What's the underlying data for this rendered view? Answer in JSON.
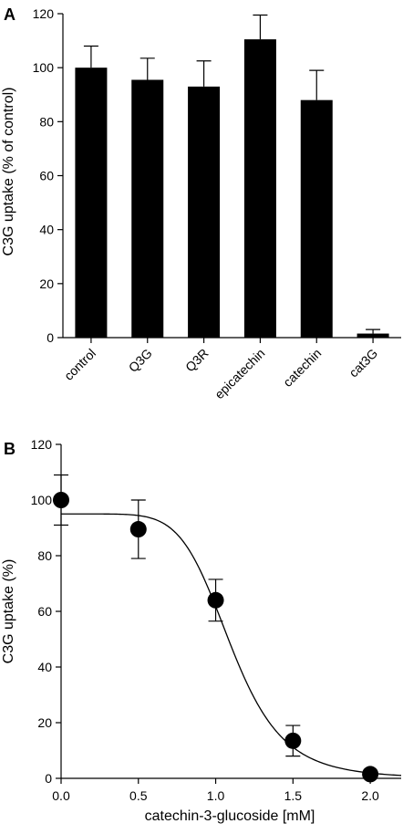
{
  "chart_data": [
    {
      "panel": "A",
      "type": "bar",
      "ylabel": "C3G uptake (% of control)",
      "ylim": [
        0,
        120
      ],
      "yticks": [
        0,
        20,
        40,
        60,
        80,
        100,
        120
      ],
      "categories": [
        "control",
        "Q3G",
        "Q3R",
        "epicatechin",
        "catechin",
        "cat3G"
      ],
      "values": [
        100,
        95.5,
        93,
        110.5,
        88,
        1.5
      ],
      "errors": [
        8,
        8,
        9.5,
        9,
        11,
        1.5
      ],
      "bar_color": "#000000"
    },
    {
      "panel": "B",
      "type": "scatter",
      "xlabel": "catechin-3-glucoside [mM]",
      "ylabel": "C3G uptake (%)",
      "xlim": [
        0,
        2.2
      ],
      "ylim": [
        0,
        120
      ],
      "xticks": [
        0.0,
        0.5,
        1.0,
        1.5,
        2.0
      ],
      "xtick_labels": [
        "0.0",
        "0.5",
        "1.0",
        "1.5",
        "2.0"
      ],
      "yticks": [
        0,
        20,
        40,
        60,
        80,
        100,
        120
      ],
      "x": [
        0.0,
        0.5,
        1.0,
        1.5,
        2.0
      ],
      "y": [
        100,
        89.5,
        64,
        13.5,
        1.5
      ],
      "errors": [
        9,
        10.5,
        7.5,
        5.5,
        0
      ],
      "fit_curve": {
        "top": 95,
        "bottom": 0,
        "ec50": 1.1,
        "hill": 6.5
      }
    }
  ]
}
